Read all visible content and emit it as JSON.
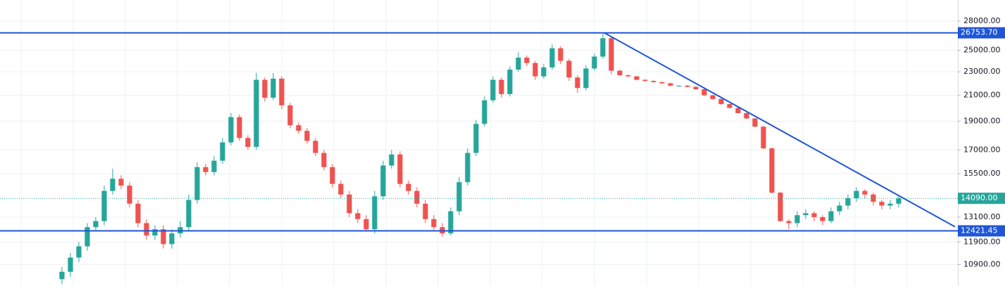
{
  "chart_data": {
    "type": "candlestick",
    "ylog": true,
    "grid": true,
    "up_color": "#26a69a",
    "down_color": "#ef5350",
    "line_color": "#1f56d8",
    "xlim": [
      -7.33,
      106
    ],
    "ylim": [
      10032,
      30380
    ],
    "yticks": [
      {
        "value": 28000,
        "label": "28000.00"
      },
      {
        "value": 25000,
        "label": "25000.00"
      },
      {
        "value": 23000,
        "label": "23000.00"
      },
      {
        "value": 21000,
        "label": "21000.00"
      },
      {
        "value": 19000,
        "label": "19000.00"
      },
      {
        "value": 17000,
        "label": "17000.00"
      },
      {
        "value": 15500,
        "label": "15500.00"
      },
      {
        "value": 13100,
        "label": "13100.00"
      },
      {
        "value": 11900,
        "label": "11900.00"
      },
      {
        "value": 10900,
        "label": "10900.00"
      }
    ],
    "horizontal_lines": [
      {
        "value": 26753.7,
        "label": "26753.70"
      },
      {
        "value": 12421.45,
        "label": "12421.45"
      }
    ],
    "current_price": {
      "value": 14090,
      "label": "14090.00"
    },
    "trend_line": {
      "x": [
        64.17,
        105.67
      ],
      "y": [
        26753.7,
        12620
      ]
    },
    "open": [
      10300,
      10600,
      11200,
      11700,
      12600,
      12900,
      14500,
      15200,
      14800,
      13800,
      12800,
      12200,
      12500,
      11800,
      12300,
      12600,
      14000,
      15900,
      15600,
      16300,
      17500,
      19300,
      17800,
      17200,
      22300,
      20800,
      22400,
      20200,
      18700,
      18300,
      17600,
      16800,
      15900,
      14900,
      14300,
      13300,
      13000,
      12500,
      14200,
      16000,
      16700,
      14900,
      14500,
      13800,
      13000,
      12600,
      12300,
      13400,
      15000,
      16800,
      18800,
      20600,
      22300,
      21100,
      23200,
      24300,
      23800,
      22600,
      23400,
      25200,
      24000,
      22500,
      21600,
      23300,
      24400,
      26200,
      23100,
      22700,
      22600,
      22300,
      22200,
      22100,
      22000,
      21800,
      21800,
      21700,
      21500,
      21000,
      20700,
      20300,
      20000,
      19600,
      19200,
      18600,
      17100,
      14400,
      12900,
      12800,
      13200,
      13300,
      13100,
      12900,
      13400,
      13700,
      14100,
      14500,
      14300,
      13900,
      13700,
      13800
    ],
    "high": [
      10800,
      11400,
      11900,
      12800,
      13100,
      14800,
      15800,
      15400,
      15000,
      14000,
      13000,
      12700,
      12700,
      12500,
      12900,
      14300,
      16200,
      16100,
      16600,
      17800,
      19600,
      19500,
      18000,
      22900,
      22500,
      22900,
      22600,
      20400,
      18900,
      18500,
      17800,
      17000,
      16100,
      15100,
      14500,
      13500,
      13200,
      14500,
      16300,
      17000,
      16900,
      15100,
      14700,
      14000,
      13200,
      12800,
      13600,
      15300,
      17100,
      19100,
      20900,
      22600,
      22500,
      23500,
      24800,
      24500,
      24000,
      23700,
      25600,
      25400,
      24200,
      22700,
      23600,
      24700,
      26750,
      26400,
      23200,
      22750,
      22650,
      22350,
      22250,
      22150,
      22050,
      21850,
      21850,
      21750,
      21550,
      21050,
      20750,
      20350,
      20050,
      19650,
      19250,
      18650,
      17150,
      14450,
      13000,
      13400,
      13500,
      13400,
      13200,
      13600,
      13900,
      14300,
      14700,
      14600,
      14400,
      14000,
      14000,
      14200
    ],
    "low": [
      10100,
      10400,
      11000,
      11500,
      12400,
      12700,
      14300,
      14600,
      13600,
      12600,
      12000,
      12000,
      11600,
      11600,
      12100,
      12400,
      13800,
      15400,
      15400,
      16100,
      17300,
      17600,
      17000,
      17000,
      20500,
      20600,
      19900,
      18500,
      18100,
      17400,
      16600,
      15700,
      14700,
      14100,
      13100,
      12800,
      12400,
      12300,
      14000,
      15800,
      14700,
      14300,
      13600,
      12800,
      12400,
      12150,
      12200,
      13200,
      14800,
      16600,
      18600,
      20400,
      20800,
      20900,
      23000,
      23500,
      22300,
      22400,
      23200,
      23700,
      22200,
      21200,
      21400,
      23100,
      24200,
      22800,
      22650,
      22550,
      22250,
      22150,
      22050,
      21950,
      21750,
      21750,
      21650,
      21450,
      20950,
      20650,
      20250,
      19950,
      19550,
      19150,
      18550,
      17050,
      14350,
      12850,
      12500,
      12600,
      13000,
      12900,
      12700,
      12800,
      13200,
      13500,
      13900,
      14100,
      13700,
      13500,
      13500,
      13600
    ],
    "close": [
      10600,
      11200,
      11700,
      12600,
      12900,
      14500,
      15200,
      14800,
      13800,
      12800,
      12200,
      12500,
      11800,
      12300,
      12600,
      14000,
      15900,
      15600,
      16300,
      17500,
      19300,
      17800,
      17200,
      22300,
      20800,
      22400,
      20200,
      18700,
      18300,
      17600,
      16800,
      15900,
      14900,
      14300,
      13300,
      13000,
      12500,
      14200,
      16000,
      16700,
      14900,
      14500,
      13800,
      13000,
      12600,
      12300,
      13400,
      15000,
      16800,
      18800,
      20600,
      22300,
      21100,
      23200,
      24300,
      23800,
      22600,
      23400,
      25200,
      24000,
      22500,
      21600,
      23300,
      24400,
      26200,
      23100,
      22700,
      22600,
      22300,
      22200,
      22100,
      22000,
      21800,
      21800,
      21700,
      21500,
      21000,
      20700,
      20300,
      20000,
      19600,
      19200,
      18600,
      17100,
      14400,
      12900,
      12800,
      13200,
      13300,
      13100,
      12900,
      13400,
      13700,
      14100,
      14500,
      14300,
      13900,
      13700,
      13800,
      14090
    ]
  }
}
